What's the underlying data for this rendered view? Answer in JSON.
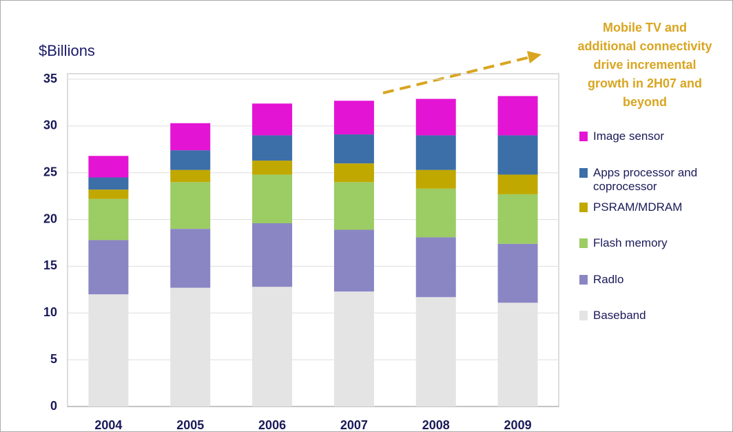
{
  "chart_data": {
    "type": "stacked-bar",
    "y_axis_label": "$Billions",
    "annotation": [
      "Mobile TV and",
      "additional connectivity",
      "drive incremental",
      "growth in 2H07 and",
      "beyond"
    ],
    "categories": [
      "2004",
      "2005",
      "2006",
      "2007",
      "2008",
      "2009"
    ],
    "series": [
      {
        "name": "Baseband",
        "color": "#e4e4e4",
        "values": [
          12.0,
          12.7,
          12.8,
          12.3,
          11.7,
          11.1
        ]
      },
      {
        "name": "Radlo",
        "color": "#8a86c4",
        "values": [
          5.8,
          6.3,
          6.8,
          6.6,
          6.4,
          6.3
        ]
      },
      {
        "name": "Flash memory",
        "color": "#9ccc64",
        "values": [
          4.4,
          5.0,
          5.2,
          5.1,
          5.2,
          5.3
        ]
      },
      {
        "name": "PSRAM/MDRAM",
        "color": "#c0a800",
        "values": [
          1.0,
          1.3,
          1.5,
          2.0,
          2.0,
          2.1
        ]
      },
      {
        "name": "Apps processor and coprocessor",
        "color": "#3c6ea8",
        "values": [
          1.3,
          2.1,
          2.7,
          3.1,
          3.7,
          4.2
        ]
      },
      {
        "name": "Image sensor",
        "color": "#e414d4",
        "values": [
          2.3,
          2.9,
          3.4,
          3.6,
          3.9,
          4.2
        ]
      }
    ],
    "ylim": [
      0,
      35
    ],
    "yticks": [
      0,
      5,
      10,
      15,
      20,
      25,
      30,
      35
    ],
    "grid": true
  }
}
